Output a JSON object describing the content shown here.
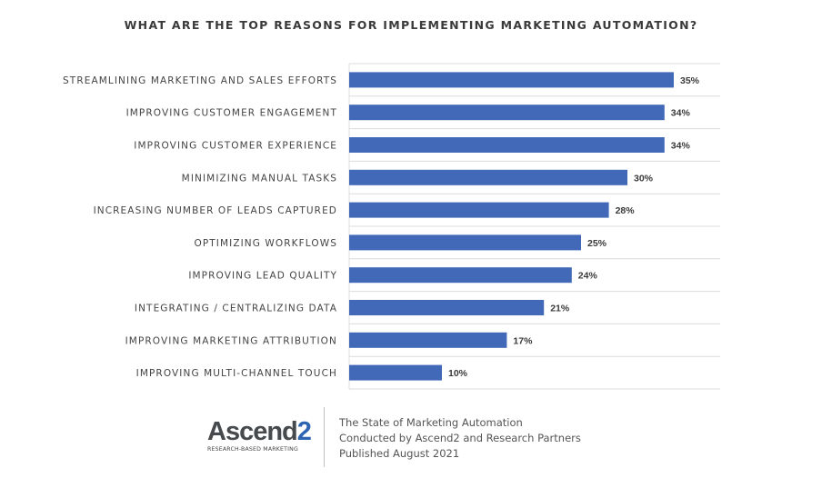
{
  "chart_data": {
    "type": "bar",
    "orientation": "horizontal",
    "title": "WHAT ARE THE TOP REASONS FOR IMPLEMENTING MARKETING AUTOMATION?",
    "categories": [
      "STREAMLINING MARKETING AND SALES EFFORTS",
      "IMPROVING CUSTOMER ENGAGEMENT",
      "IMPROVING CUSTOMER EXPERIENCE",
      "MINIMIZING MANUAL TASKS",
      "INCREASING NUMBER OF LEADS CAPTURED",
      "OPTIMIZING WORKFLOWS",
      "IMPROVING LEAD QUALITY",
      "INTEGRATING / CENTRALIZING DATA",
      "IMPROVING MARKETING ATTRIBUTION",
      "IMPROVING MULTI-CHANNEL TOUCH"
    ],
    "values": [
      35,
      34,
      34,
      30,
      28,
      25,
      24,
      21,
      17,
      10
    ],
    "value_labels": [
      "35%",
      "34%",
      "34%",
      "30%",
      "28%",
      "25%",
      "24%",
      "21%",
      "17%",
      "10%"
    ],
    "xlim": [
      0,
      40
    ],
    "grid": "horizontal row separators",
    "bar_color": "#4169b8",
    "legend": "none"
  },
  "footer": {
    "logo_name": "Ascend",
    "logo_number": "2",
    "logo_tagline": "RESEARCH-BASED MARKETING",
    "line1": "The State of Marketing Automation",
    "line2": "Conducted by Ascend2 and Research Partners",
    "line3": "Published August 2021"
  }
}
